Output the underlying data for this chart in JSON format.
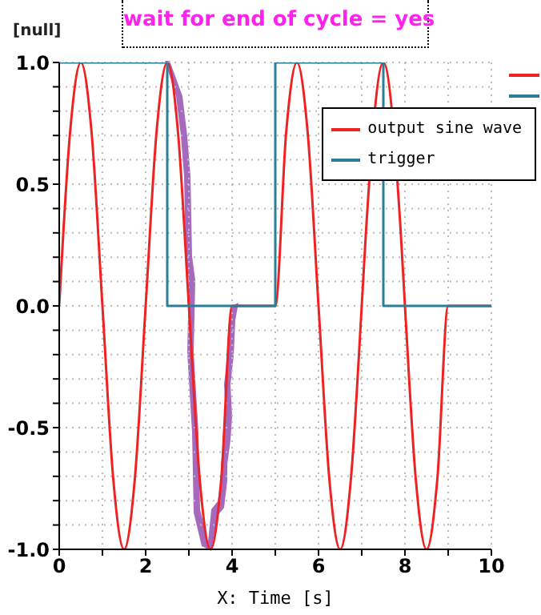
{
  "chart_data": {
    "type": "line",
    "title": "wait for end of cycle = yes",
    "ylabel": "[null]",
    "xlabel": "X: Time [s]",
    "series": [
      {
        "name": "output sine wave",
        "color": "#ee2222",
        "x": [
          0,
          0.25,
          0.5,
          0.75,
          1,
          1.25,
          1.5,
          1.75,
          2,
          2.25,
          2.5,
          2.75,
          3,
          3.25,
          3.5,
          3.75,
          4,
          5,
          5.25,
          5.5,
          5.75,
          6,
          6.25,
          6.5,
          6.75,
          7,
          7.1,
          7.5,
          7.9,
          8,
          8.25,
          8.5,
          8.75,
          9,
          10
        ],
        "values": [
          0,
          0.71,
          1,
          0.71,
          0,
          -0.71,
          -1,
          -0.71,
          0,
          0.71,
          1,
          0.71,
          0,
          -0.71,
          -1,
          -0.71,
          0,
          0,
          0.71,
          1,
          0.71,
          0,
          -0.71,
          -1,
          -0.71,
          0,
          0.31,
          1,
          0.31,
          0,
          -0.71,
          -1,
          -0.71,
          0,
          0
        ]
      },
      {
        "name": "trigger",
        "type": "step",
        "color": "#2a7f96",
        "x": [
          0,
          2.5,
          5,
          7.5,
          10
        ],
        "values": [
          1,
          0,
          1,
          0,
          0
        ]
      }
    ],
    "xlim": [
      0,
      10
    ],
    "xticks": [
      0,
      {
        "value": 1,
        "label": null
      },
      2,
      {
        "value": 3,
        "label": null
      },
      4,
      {
        "value": 5,
        "label": null
      },
      6,
      {
        "value": 7,
        "label": null
      },
      8,
      {
        "value": 9,
        "label": null
      },
      10
    ],
    "ylim": [
      -1,
      1
    ],
    "yticks": [
      {
        "value": -1,
        "label": "-1.0"
      },
      {
        "value": -0.9,
        "label": null
      },
      {
        "value": -0.8,
        "label": null
      },
      {
        "value": -0.7,
        "label": null
      },
      {
        "value": -0.6,
        "label": null
      },
      {
        "value": -0.5,
        "label": "-0.5"
      },
      {
        "value": -0.4,
        "label": null
      },
      {
        "value": -0.3,
        "label": null
      },
      {
        "value": -0.2,
        "label": null
      },
      {
        "value": -0.1,
        "label": null
      },
      {
        "value": 0,
        "label": "0.0"
      },
      {
        "value": 0.1,
        "label": null
      },
      {
        "value": 0.2,
        "label": null
      },
      {
        "value": 0.3,
        "label": null
      },
      {
        "value": 0.4,
        "label": null
      },
      {
        "value": 0.5,
        "label": "0.5"
      },
      {
        "value": 0.6,
        "label": null
      },
      {
        "value": 0.7,
        "label": null
      },
      {
        "value": 0.8,
        "label": null
      },
      {
        "value": 0.9,
        "label": null
      },
      {
        "value": 1,
        "label": "1.0"
      }
    ],
    "grid": true,
    "legend": "top right",
    "marker": "none",
    "line_style": "solid"
  }
}
